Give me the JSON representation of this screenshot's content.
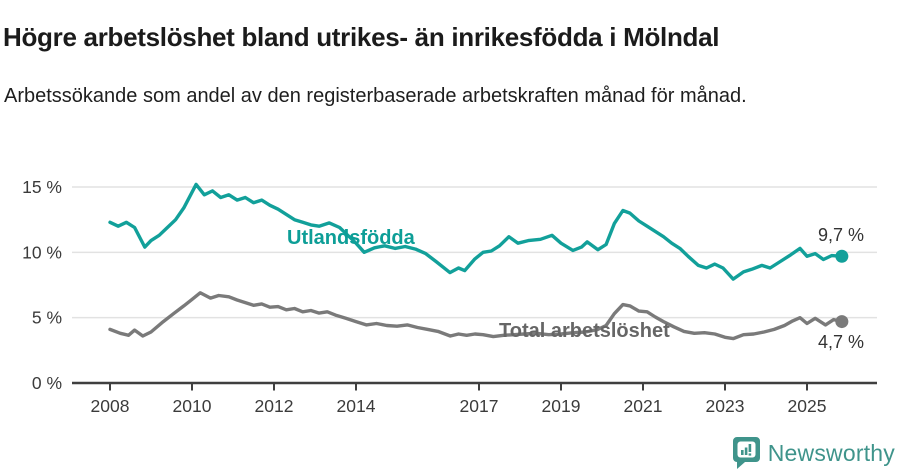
{
  "header": {
    "title": "Högre arbetslöshet bland utrikes- än inrikesfödda i Mölndal",
    "subtitle": "Arbetssökande som andel av den registerbaserade arbetskraften månad för månad."
  },
  "footer": {
    "brand": "Newsworthy",
    "logo_icon": "newsworthy-speech-bubble-bar-chart",
    "brand_color": "#3f948b"
  },
  "chart_data": {
    "type": "line",
    "unit": "%",
    "grid": "horizontal",
    "legend_position": "inline-labels",
    "x_axis": {
      "ticks": [
        2008,
        2010,
        2012,
        2014,
        2017,
        2019,
        2021,
        2023,
        2025
      ],
      "range": [
        2008,
        2025.85
      ]
    },
    "y_axis": {
      "ticks": [
        0,
        5,
        10,
        15
      ],
      "tick_labels": [
        "0 %",
        "5 %",
        "10 %",
        "15 %"
      ],
      "range": [
        0,
        16.5
      ]
    },
    "series": [
      {
        "name": "Utlandsfödda",
        "color": "#12a09a",
        "label_color": "#0d9e97",
        "end_label": "9,7 %",
        "end_value": 9.7,
        "points": [
          [
            2008.0,
            12.3
          ],
          [
            2008.2,
            12.0
          ],
          [
            2008.4,
            12.3
          ],
          [
            2008.6,
            11.9
          ],
          [
            2008.85,
            10.4
          ],
          [
            2009.0,
            10.9
          ],
          [
            2009.2,
            11.3
          ],
          [
            2009.4,
            11.9
          ],
          [
            2009.6,
            12.5
          ],
          [
            2009.8,
            13.4
          ],
          [
            2010.1,
            15.2
          ],
          [
            2010.3,
            14.4
          ],
          [
            2010.5,
            14.7
          ],
          [
            2010.7,
            14.2
          ],
          [
            2010.9,
            14.4
          ],
          [
            2011.1,
            14.0
          ],
          [
            2011.3,
            14.2
          ],
          [
            2011.5,
            13.8
          ],
          [
            2011.7,
            14.0
          ],
          [
            2011.9,
            13.6
          ],
          [
            2012.1,
            13.3
          ],
          [
            2012.3,
            12.9
          ],
          [
            2012.5,
            12.5
          ],
          [
            2012.7,
            12.3
          ],
          [
            2012.9,
            12.1
          ],
          [
            2013.1,
            12.0
          ],
          [
            2013.35,
            12.25
          ],
          [
            2013.6,
            11.9
          ],
          [
            2013.8,
            11.3
          ],
          [
            2014.0,
            10.7
          ],
          [
            2014.2,
            10.0
          ],
          [
            2014.45,
            10.35
          ],
          [
            2014.7,
            10.5
          ],
          [
            2014.95,
            10.3
          ],
          [
            2015.2,
            10.45
          ],
          [
            2015.45,
            10.25
          ],
          [
            2015.7,
            9.9
          ],
          [
            2015.95,
            9.3
          ],
          [
            2016.29,
            8.45
          ],
          [
            2016.5,
            8.8
          ],
          [
            2016.65,
            8.6
          ],
          [
            2016.9,
            9.5
          ],
          [
            2017.1,
            10.0
          ],
          [
            2017.3,
            10.1
          ],
          [
            2017.5,
            10.5
          ],
          [
            2017.73,
            11.2
          ],
          [
            2017.95,
            10.7
          ],
          [
            2018.2,
            10.9
          ],
          [
            2018.5,
            11.0
          ],
          [
            2018.78,
            11.3
          ],
          [
            2019.0,
            10.7
          ],
          [
            2019.29,
            10.15
          ],
          [
            2019.5,
            10.4
          ],
          [
            2019.64,
            10.8
          ],
          [
            2019.9,
            10.2
          ],
          [
            2020.1,
            10.6
          ],
          [
            2020.3,
            12.2
          ],
          [
            2020.51,
            13.2
          ],
          [
            2020.68,
            13.0
          ],
          [
            2020.9,
            12.4
          ],
          [
            2021.1,
            12.0
          ],
          [
            2021.3,
            11.6
          ],
          [
            2021.5,
            11.2
          ],
          [
            2021.7,
            10.7
          ],
          [
            2021.9,
            10.3
          ],
          [
            2022.1,
            9.7
          ],
          [
            2022.35,
            9.0
          ],
          [
            2022.55,
            8.8
          ],
          [
            2022.75,
            9.1
          ],
          [
            2022.95,
            8.8
          ],
          [
            2023.2,
            7.95
          ],
          [
            2023.45,
            8.5
          ],
          [
            2023.65,
            8.7
          ],
          [
            2023.9,
            9.0
          ],
          [
            2024.1,
            8.8
          ],
          [
            2024.35,
            9.3
          ],
          [
            2024.6,
            9.8
          ],
          [
            2024.83,
            10.3
          ],
          [
            2025.0,
            9.7
          ],
          [
            2025.2,
            9.9
          ],
          [
            2025.4,
            9.45
          ],
          [
            2025.6,
            9.75
          ],
          [
            2025.85,
            9.7
          ]
        ]
      },
      {
        "name": "Total arbetslöshet",
        "color": "#7a7a7a",
        "label_color": "#666666",
        "end_label": "4,7 %",
        "end_value": 4.7,
        "points": [
          [
            2008.0,
            4.1
          ],
          [
            2008.25,
            3.8
          ],
          [
            2008.45,
            3.65
          ],
          [
            2008.6,
            4.05
          ],
          [
            2008.8,
            3.6
          ],
          [
            2009.0,
            3.9
          ],
          [
            2009.3,
            4.7
          ],
          [
            2009.55,
            5.3
          ],
          [
            2009.8,
            5.9
          ],
          [
            2010.0,
            6.4
          ],
          [
            2010.2,
            6.9
          ],
          [
            2010.45,
            6.5
          ],
          [
            2010.65,
            6.7
          ],
          [
            2010.9,
            6.6
          ],
          [
            2011.1,
            6.35
          ],
          [
            2011.3,
            6.15
          ],
          [
            2011.5,
            5.95
          ],
          [
            2011.7,
            6.05
          ],
          [
            2011.9,
            5.8
          ],
          [
            2012.1,
            5.85
          ],
          [
            2012.3,
            5.6
          ],
          [
            2012.5,
            5.7
          ],
          [
            2012.7,
            5.45
          ],
          [
            2012.9,
            5.55
          ],
          [
            2013.1,
            5.35
          ],
          [
            2013.3,
            5.45
          ],
          [
            2013.5,
            5.2
          ],
          [
            2013.75,
            4.95
          ],
          [
            2014.0,
            4.7
          ],
          [
            2014.25,
            4.45
          ],
          [
            2014.5,
            4.55
          ],
          [
            2014.75,
            4.4
          ],
          [
            2015.0,
            4.35
          ],
          [
            2015.25,
            4.45
          ],
          [
            2015.5,
            4.25
          ],
          [
            2015.75,
            4.1
          ],
          [
            2016.0,
            3.95
          ],
          [
            2016.3,
            3.6
          ],
          [
            2016.5,
            3.75
          ],
          [
            2016.7,
            3.65
          ],
          [
            2016.9,
            3.75
          ],
          [
            2017.1,
            3.7
          ],
          [
            2017.35,
            3.55
          ],
          [
            2017.6,
            3.65
          ],
          [
            2017.85,
            3.7
          ],
          [
            2018.1,
            3.75
          ],
          [
            2018.4,
            3.8
          ],
          [
            2018.7,
            3.7
          ],
          [
            2019.0,
            3.75
          ],
          [
            2019.3,
            3.85
          ],
          [
            2019.6,
            3.9
          ],
          [
            2019.9,
            4.1
          ],
          [
            2020.1,
            4.4
          ],
          [
            2020.3,
            5.3
          ],
          [
            2020.51,
            6.0
          ],
          [
            2020.68,
            5.9
          ],
          [
            2020.9,
            5.5
          ],
          [
            2021.1,
            5.45
          ],
          [
            2021.3,
            5.05
          ],
          [
            2021.5,
            4.7
          ],
          [
            2021.75,
            4.3
          ],
          [
            2022.0,
            3.95
          ],
          [
            2022.25,
            3.8
          ],
          [
            2022.5,
            3.85
          ],
          [
            2022.75,
            3.75
          ],
          [
            2023.0,
            3.5
          ],
          [
            2023.2,
            3.4
          ],
          [
            2023.45,
            3.7
          ],
          [
            2023.7,
            3.75
          ],
          [
            2023.95,
            3.9
          ],
          [
            2024.2,
            4.1
          ],
          [
            2024.45,
            4.4
          ],
          [
            2024.65,
            4.75
          ],
          [
            2024.83,
            5.0
          ],
          [
            2025.0,
            4.55
          ],
          [
            2025.2,
            4.95
          ],
          [
            2025.45,
            4.45
          ],
          [
            2025.65,
            4.85
          ],
          [
            2025.85,
            4.7
          ]
        ]
      }
    ]
  }
}
